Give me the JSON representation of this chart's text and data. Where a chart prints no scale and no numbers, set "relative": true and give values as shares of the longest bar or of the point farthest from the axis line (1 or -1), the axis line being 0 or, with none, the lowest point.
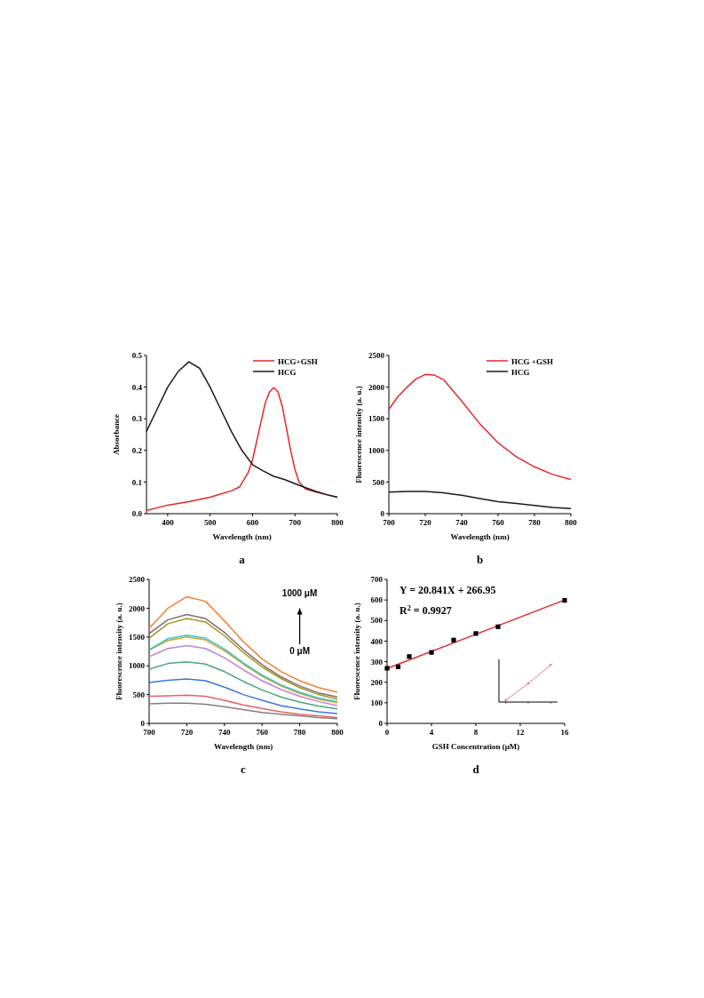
{
  "chart_data": [
    {
      "type": "line",
      "title": "a",
      "xlabel": "Wavelength (nm)",
      "ylabel": "Absorbance",
      "xlim": [
        350,
        800
      ],
      "xticks": [
        400,
        500,
        600,
        700,
        800
      ],
      "ylim": [
        0,
        0.5
      ],
      "yticks": [
        {
          "value": 0,
          "label": "0.0"
        },
        0.1,
        0.2,
        0.3,
        0.4,
        0.5
      ],
      "legend": "top right",
      "series": [
        {
          "name": "HCG+GSH",
          "color": "#e8262b",
          "x": [
            350,
            400,
            450,
            500,
            550,
            570,
            590,
            600,
            615,
            630,
            640,
            650,
            660,
            670,
            680,
            690,
            700,
            710,
            725,
            750,
            775,
            800
          ],
          "values": [
            0.01,
            0.027,
            0.038,
            0.052,
            0.072,
            0.085,
            0.13,
            0.17,
            0.26,
            0.35,
            0.385,
            0.398,
            0.385,
            0.34,
            0.27,
            0.2,
            0.14,
            0.1,
            0.078,
            0.068,
            0.06,
            0.052
          ]
        },
        {
          "name": "HCG",
          "color": "#1a1a1a",
          "x": [
            350,
            375,
            400,
            425,
            450,
            475,
            500,
            525,
            550,
            575,
            600,
            625,
            650,
            675,
            700,
            725,
            750,
            775,
            800
          ],
          "values": [
            0.26,
            0.33,
            0.4,
            0.45,
            0.48,
            0.46,
            0.4,
            0.33,
            0.26,
            0.2,
            0.155,
            0.135,
            0.118,
            0.108,
            0.095,
            0.082,
            0.07,
            0.06,
            0.052
          ]
        }
      ]
    },
    {
      "type": "line",
      "title": "b",
      "xlabel": "Wavelength (nm)",
      "ylabel": "Fluorescence intensity  (a. u.)",
      "xlim": [
        700,
        800
      ],
      "xticks": [
        700,
        720,
        740,
        760,
        780,
        800
      ],
      "ylim": [
        0,
        2500
      ],
      "yticks": [
        0,
        500,
        1000,
        1500,
        2000,
        2500
      ],
      "legend": "top right",
      "series": [
        {
          "name": "HCG +GSH",
          "color": "#e8262b",
          "x": [
            700,
            705,
            710,
            715,
            720,
            725,
            730,
            740,
            750,
            760,
            770,
            780,
            790,
            800
          ],
          "values": [
            1650,
            1850,
            2000,
            2130,
            2200,
            2190,
            2120,
            1780,
            1420,
            1120,
            900,
            740,
            620,
            540
          ]
        },
        {
          "name": "HCG",
          "color": "#1a1a1a",
          "x": [
            700,
            710,
            720,
            730,
            740,
            750,
            760,
            770,
            780,
            790,
            800
          ],
          "values": [
            340,
            350,
            350,
            330,
            290,
            240,
            190,
            160,
            130,
            100,
            80
          ]
        }
      ]
    },
    {
      "type": "line",
      "title": "c",
      "xlabel": "Wavelength (nm)",
      "ylabel": "Fluorescence intensity  (a. u.)",
      "xlim": [
        700,
        800
      ],
      "xticks": [
        700,
        720,
        740,
        760,
        780,
        800
      ],
      "ylim": [
        0,
        2500
      ],
      "yticks": [
        0,
        500,
        1000,
        1500,
        2000,
        2500
      ],
      "x": [
        700,
        710,
        720,
        730,
        740,
        750,
        760,
        770,
        780,
        790,
        800
      ],
      "annotations": [
        "1000 μM",
        "0 μM"
      ],
      "series": [
        {
          "color": "#808080",
          "values": [
            340,
            350,
            350,
            330,
            290,
            240,
            190,
            160,
            130,
            100,
            80
          ]
        },
        {
          "color": "#e46464",
          "values": [
            470,
            480,
            490,
            470,
            400,
            320,
            260,
            200,
            160,
            130,
            100
          ]
        },
        {
          "color": "#3a78d8",
          "values": [
            710,
            750,
            770,
            740,
            630,
            500,
            400,
            310,
            250,
            200,
            170
          ]
        },
        {
          "color": "#4aa87a",
          "values": [
            940,
            1040,
            1070,
            1030,
            900,
            730,
            580,
            460,
            370,
            300,
            250
          ]
        },
        {
          "color": "#c080e0",
          "values": [
            1160,
            1300,
            1350,
            1300,
            1140,
            930,
            740,
            590,
            470,
            380,
            310
          ]
        },
        {
          "color": "#d8a020",
          "values": [
            1270,
            1440,
            1500,
            1450,
            1260,
            1030,
            820,
            650,
            520,
            420,
            360
          ]
        },
        {
          "color": "#30c8c8",
          "values": [
            1280,
            1470,
            1530,
            1480,
            1290,
            1050,
            840,
            670,
            540,
            440,
            380
          ]
        },
        {
          "color": "#9a9a20",
          "values": [
            1480,
            1730,
            1820,
            1760,
            1520,
            1230,
            980,
            780,
            620,
            500,
            420
          ]
        },
        {
          "color": "#8a6a6a",
          "values": [
            1560,
            1800,
            1890,
            1820,
            1580,
            1280,
            1020,
            810,
            650,
            530,
            460
          ]
        },
        {
          "color": "#f08030",
          "values": [
            1650,
            2000,
            2200,
            2120,
            1780,
            1420,
            1120,
            900,
            740,
            620,
            540
          ]
        }
      ]
    },
    {
      "type": "scatter",
      "title": "d",
      "xlabel": "GSH Concentration (μM)",
      "ylabel": "Fluorescence intensity (a. u.)",
      "xlim": [
        0,
        16
      ],
      "xticks": [
        0,
        4,
        8,
        12,
        16
      ],
      "ylim": [
        0,
        700
      ],
      "yticks": [
        0,
        100,
        200,
        300,
        400,
        500,
        600,
        700
      ],
      "annotations": [
        "Y = 20.841X + 266.95",
        "R$^{2}$ = 0.9927"
      ],
      "series": [
        {
          "type": "line",
          "color": "#e8262b",
          "x": [
            0,
            16
          ],
          "values": [
            267,
            600
          ]
        },
        {
          "marker": "square",
          "color": "#000000",
          "x": [
            0,
            1,
            2,
            4,
            6,
            8,
            10,
            16
          ],
          "values": [
            268,
            275,
            325,
            345,
            405,
            437,
            470,
            598
          ]
        }
      ]
    },
    {
      "type": "line",
      "relative": true,
      "categories": [
        null,
        null,
        null
      ],
      "series": [
        {
          "color": "#e06060",
          "marker": "square",
          "values": [
            0.05,
            0.5,
            1
          ]
        }
      ]
    }
  ]
}
